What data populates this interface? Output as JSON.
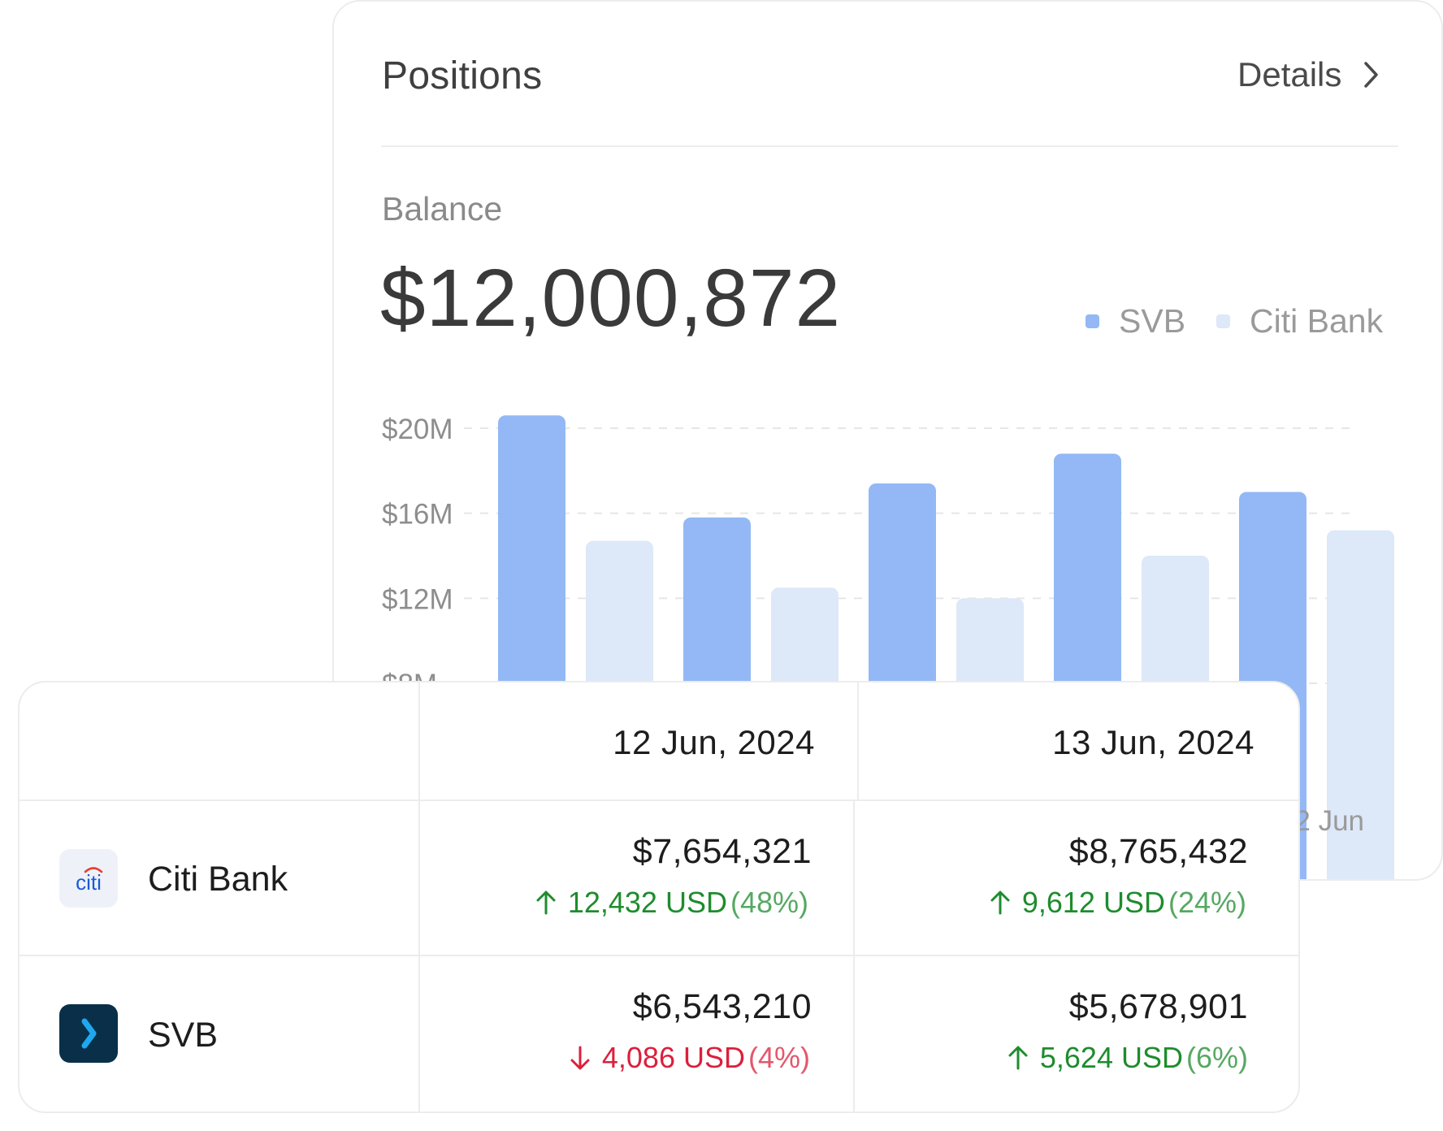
{
  "card": {
    "title": "Positions",
    "details_label": "Details",
    "balance_label": "Balance",
    "balance_value": "$12,000,872"
  },
  "colors": {
    "svb": "#93b8f5",
    "citi": "#dde8f8",
    "up": "#1e8c2e",
    "down": "#dc1f3c"
  },
  "chart_data": {
    "type": "bar",
    "ylim": [
      0,
      20000000
    ],
    "grid": true,
    "legend_placement": "top-right",
    "yticks": [
      {
        "value": 20000000,
        "label": "$20M"
      },
      {
        "value": 16000000,
        "label": "$16M"
      },
      {
        "value": 12000000,
        "label": "$12M"
      },
      {
        "value": 8000000,
        "label": "$8M"
      }
    ],
    "categories": [
      "",
      "",
      "",
      "",
      ""
    ],
    "visible_x_label": "2 Jun",
    "series": [
      {
        "name": "SVB",
        "color": "#93b8f5",
        "values": [
          20600000,
          15800000,
          17400000,
          18800000,
          17000000
        ]
      },
      {
        "name": "Citi Bank",
        "color": "#dde8f8",
        "values": [
          14700000,
          12500000,
          12000000,
          14000000,
          15200000
        ]
      }
    ]
  },
  "table": {
    "columns": [
      "12 Jun, 2024",
      "13 Jun, 2024"
    ],
    "rows": [
      {
        "bank": "Citi Bank",
        "icon": "citi-logo",
        "cells": [
          {
            "amount": "$7,654,321",
            "direction": "up",
            "delta": "12,432 USD",
            "pct": "(48%)"
          },
          {
            "amount": "$8,765,432",
            "direction": "up",
            "delta": "9,612 USD",
            "pct": "(24%)"
          }
        ]
      },
      {
        "bank": "SVB",
        "icon": "svb-logo",
        "cells": [
          {
            "amount": "$6,543,210",
            "direction": "down",
            "delta": "4,086 USD",
            "pct": "(4%)"
          },
          {
            "amount": "$5,678,901",
            "direction": "up",
            "delta": "5,624 USD",
            "pct": "(6%)"
          }
        ]
      }
    ]
  }
}
